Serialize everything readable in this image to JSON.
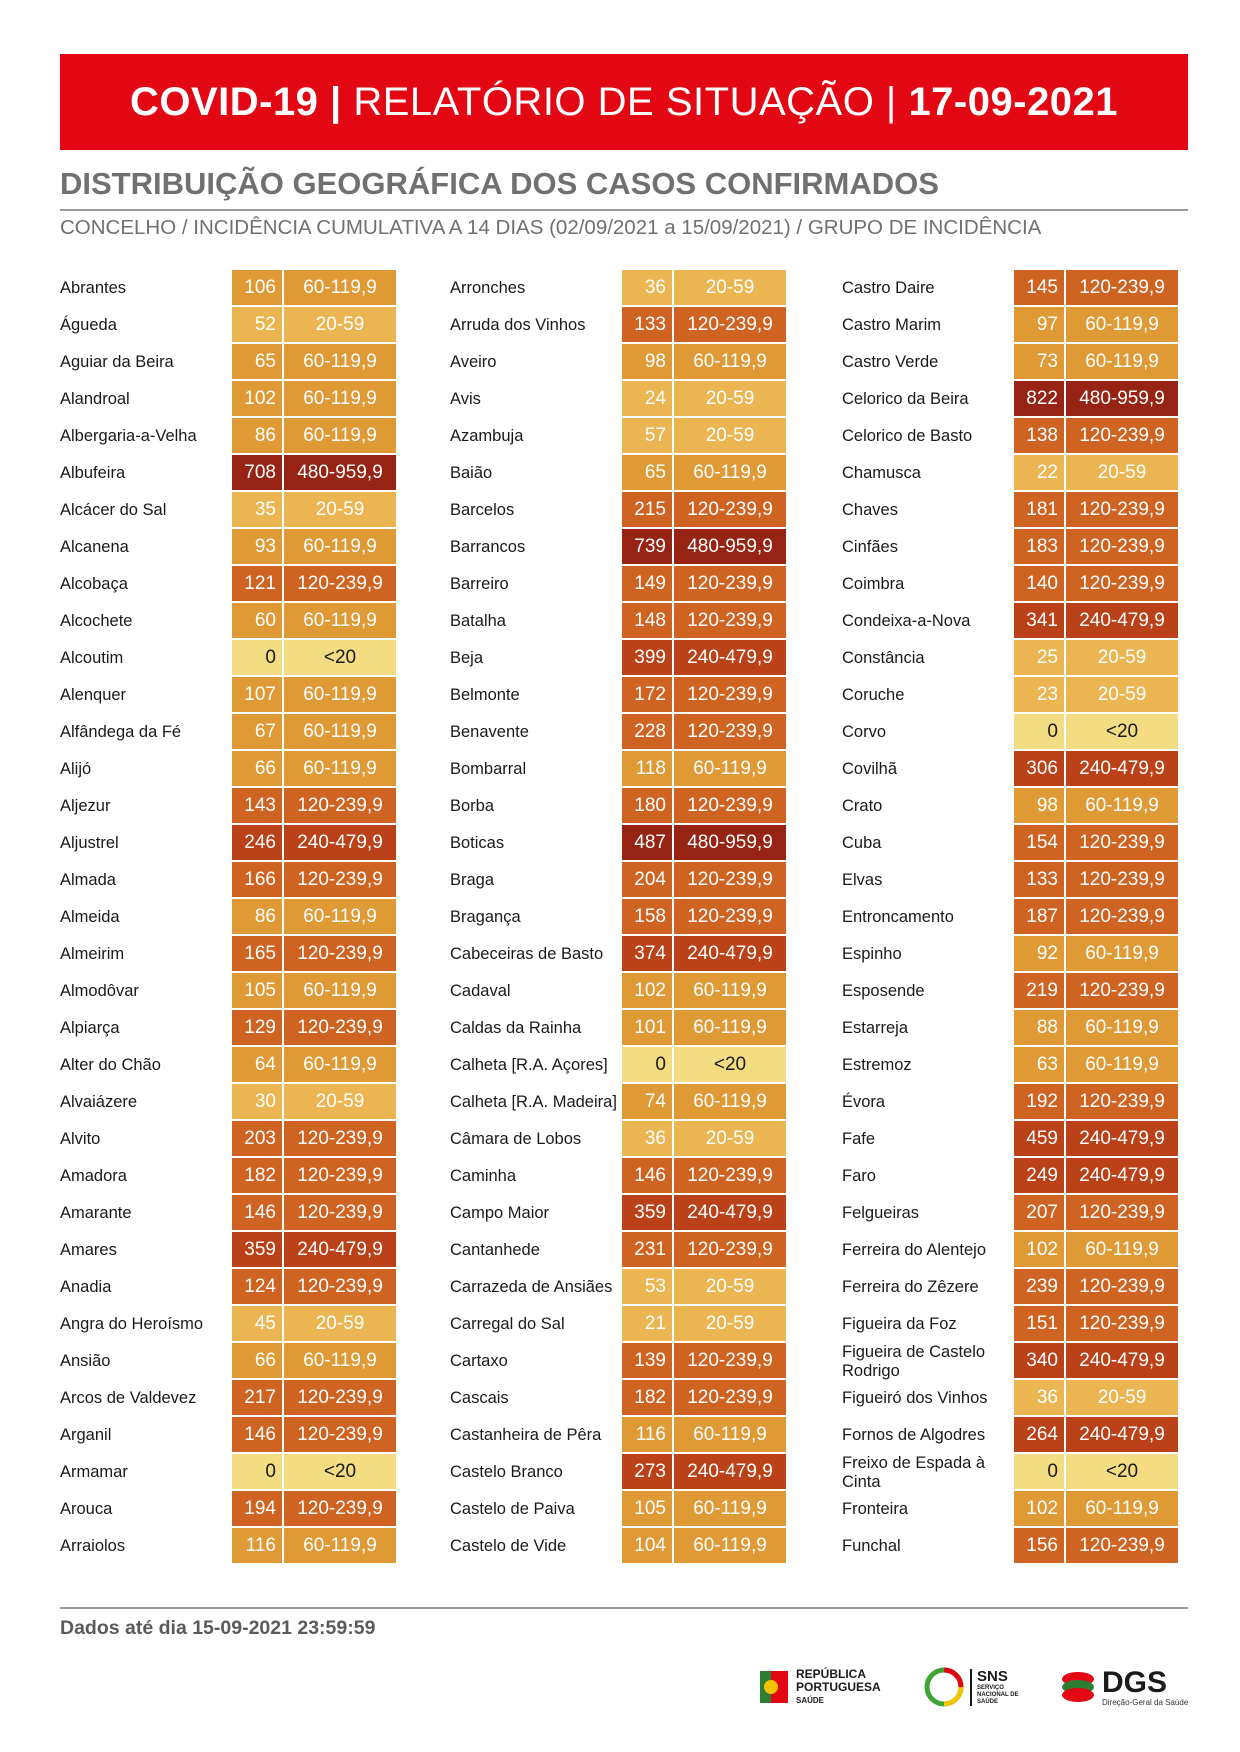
{
  "header": {
    "covid": "COVID-19 |",
    "report": "RELATÓRIO DE SITUAÇÃO |",
    "date": "17-09-2021"
  },
  "section": {
    "title": "DISTRIBUIÇÃO GEOGRÁFICA DOS CASOS CONFIRMADOS",
    "subtitle": "CONCELHO / INCIDÊNCIA CUMULATIVA A 14 DIAS (02/09/2021 a 15/09/2021) / GRUPO DE INCIDÊNCIA"
  },
  "group_colors": {
    "<20": "#f3dc82",
    "20-59": "#ebb652",
    "60-119,9": "#df9a36",
    "120-239,9": "#cf6422",
    "240-479,9": "#bb4119",
    "480-959,9": "#962313"
  },
  "columns": [
    [
      {
        "name": "Abrantes",
        "value": "106",
        "group": "60-119,9"
      },
      {
        "name": "Águeda",
        "value": "52",
        "group": "20-59"
      },
      {
        "name": "Aguiar da Beira",
        "value": "65",
        "group": "60-119,9"
      },
      {
        "name": "Alandroal",
        "value": "102",
        "group": "60-119,9"
      },
      {
        "name": "Albergaria-a-Velha",
        "value": "86",
        "group": "60-119,9"
      },
      {
        "name": "Albufeira",
        "value": "708",
        "group": "480-959,9"
      },
      {
        "name": "Alcácer do Sal",
        "value": "35",
        "group": "20-59"
      },
      {
        "name": "Alcanena",
        "value": "93",
        "group": "60-119,9"
      },
      {
        "name": "Alcobaça",
        "value": "121",
        "group": "120-239,9"
      },
      {
        "name": "Alcochete",
        "value": "60",
        "group": "60-119,9"
      },
      {
        "name": "Alcoutim",
        "value": "0",
        "group": "<20"
      },
      {
        "name": "Alenquer",
        "value": "107",
        "group": "60-119,9"
      },
      {
        "name": "Alfândega da Fé",
        "value": "67",
        "group": "60-119,9"
      },
      {
        "name": "Alijó",
        "value": "66",
        "group": "60-119,9"
      },
      {
        "name": "Aljezur",
        "value": "143",
        "group": "120-239,9"
      },
      {
        "name": "Aljustrel",
        "value": "246",
        "group": "240-479,9"
      },
      {
        "name": "Almada",
        "value": "166",
        "group": "120-239,9"
      },
      {
        "name": "Almeida",
        "value": "86",
        "group": "60-119,9"
      },
      {
        "name": "Almeirim",
        "value": "165",
        "group": "120-239,9"
      },
      {
        "name": "Almodôvar",
        "value": "105",
        "group": "60-119,9"
      },
      {
        "name": "Alpiarça",
        "value": "129",
        "group": "120-239,9"
      },
      {
        "name": "Alter do Chão",
        "value": "64",
        "group": "60-119,9"
      },
      {
        "name": "Alvaiázere",
        "value": "30",
        "group": "20-59"
      },
      {
        "name": "Alvito",
        "value": "203",
        "group": "120-239,9"
      },
      {
        "name": "Amadora",
        "value": "182",
        "group": "120-239,9"
      },
      {
        "name": "Amarante",
        "value": "146",
        "group": "120-239,9"
      },
      {
        "name": "Amares",
        "value": "359",
        "group": "240-479,9"
      },
      {
        "name": "Anadia",
        "value": "124",
        "group": "120-239,9"
      },
      {
        "name": "Angra do Heroísmo",
        "value": "45",
        "group": "20-59"
      },
      {
        "name": "Ansião",
        "value": "66",
        "group": "60-119,9"
      },
      {
        "name": "Arcos de Valdevez",
        "value": "217",
        "group": "120-239,9"
      },
      {
        "name": "Arganil",
        "value": "146",
        "group": "120-239,9"
      },
      {
        "name": "Armamar",
        "value": "0",
        "group": "<20"
      },
      {
        "name": "Arouca",
        "value": "194",
        "group": "120-239,9"
      },
      {
        "name": "Arraiolos",
        "value": "116",
        "group": "60-119,9"
      }
    ],
    [
      {
        "name": "Arronches",
        "value": "36",
        "group": "20-59"
      },
      {
        "name": "Arruda dos Vinhos",
        "value": "133",
        "group": "120-239,9"
      },
      {
        "name": "Aveiro",
        "value": "98",
        "group": "60-119,9"
      },
      {
        "name": "Avis",
        "value": "24",
        "group": "20-59"
      },
      {
        "name": "Azambuja",
        "value": "57",
        "group": "20-59"
      },
      {
        "name": "Baião",
        "value": "65",
        "group": "60-119,9"
      },
      {
        "name": "Barcelos",
        "value": "215",
        "group": "120-239,9"
      },
      {
        "name": "Barrancos",
        "value": "739",
        "group": "480-959,9"
      },
      {
        "name": "Barreiro",
        "value": "149",
        "group": "120-239,9"
      },
      {
        "name": "Batalha",
        "value": "148",
        "group": "120-239,9"
      },
      {
        "name": "Beja",
        "value": "399",
        "group": "240-479,9"
      },
      {
        "name": "Belmonte",
        "value": "172",
        "group": "120-239,9"
      },
      {
        "name": "Benavente",
        "value": "228",
        "group": "120-239,9"
      },
      {
        "name": "Bombarral",
        "value": "118",
        "group": "60-119,9"
      },
      {
        "name": "Borba",
        "value": "180",
        "group": "120-239,9"
      },
      {
        "name": "Boticas",
        "value": "487",
        "group": "480-959,9"
      },
      {
        "name": "Braga",
        "value": "204",
        "group": "120-239,9"
      },
      {
        "name": "Bragança",
        "value": "158",
        "group": "120-239,9"
      },
      {
        "name": "Cabeceiras de Basto",
        "value": "374",
        "group": "240-479,9"
      },
      {
        "name": "Cadaval",
        "value": "102",
        "group": "60-119,9"
      },
      {
        "name": "Caldas da Rainha",
        "value": "101",
        "group": "60-119,9"
      },
      {
        "name": "Calheta [R.A. Açores]",
        "value": "0",
        "group": "<20"
      },
      {
        "name": "Calheta [R.A. Madeira]",
        "value": "74",
        "group": "60-119,9"
      },
      {
        "name": "Câmara de Lobos",
        "value": "36",
        "group": "20-59"
      },
      {
        "name": "Caminha",
        "value": "146",
        "group": "120-239,9"
      },
      {
        "name": "Campo Maior",
        "value": "359",
        "group": "240-479,9"
      },
      {
        "name": "Cantanhede",
        "value": "231",
        "group": "120-239,9"
      },
      {
        "name": "Carrazeda de Ansiães",
        "value": "53",
        "group": "20-59"
      },
      {
        "name": "Carregal do Sal",
        "value": "21",
        "group": "20-59"
      },
      {
        "name": "Cartaxo",
        "value": "139",
        "group": "120-239,9"
      },
      {
        "name": "Cascais",
        "value": "182",
        "group": "120-239,9"
      },
      {
        "name": "Castanheira de Pêra",
        "value": "116",
        "group": "60-119,9"
      },
      {
        "name": "Castelo Branco",
        "value": "273",
        "group": "240-479,9"
      },
      {
        "name": "Castelo de Paiva",
        "value": "105",
        "group": "60-119,9"
      },
      {
        "name": "Castelo de Vide",
        "value": "104",
        "group": "60-119,9"
      }
    ],
    [
      {
        "name": "Castro Daire",
        "value": "145",
        "group": "120-239,9"
      },
      {
        "name": "Castro Marim",
        "value": "97",
        "group": "60-119,9"
      },
      {
        "name": "Castro Verde",
        "value": "73",
        "group": "60-119,9"
      },
      {
        "name": "Celorico da Beira",
        "value": "822",
        "group": "480-959,9"
      },
      {
        "name": "Celorico de Basto",
        "value": "138",
        "group": "120-239,9"
      },
      {
        "name": "Chamusca",
        "value": "22",
        "group": "20-59"
      },
      {
        "name": "Chaves",
        "value": "181",
        "group": "120-239,9"
      },
      {
        "name": "Cinfães",
        "value": "183",
        "group": "120-239,9"
      },
      {
        "name": "Coimbra",
        "value": "140",
        "group": "120-239,9"
      },
      {
        "name": "Condeixa-a-Nova",
        "value": "341",
        "group": "240-479,9"
      },
      {
        "name": "Constância",
        "value": "25",
        "group": "20-59"
      },
      {
        "name": "Coruche",
        "value": "23",
        "group": "20-59"
      },
      {
        "name": "Corvo",
        "value": "0",
        "group": "<20"
      },
      {
        "name": "Covilhã",
        "value": "306",
        "group": "240-479,9"
      },
      {
        "name": "Crato",
        "value": "98",
        "group": "60-119,9"
      },
      {
        "name": "Cuba",
        "value": "154",
        "group": "120-239,9"
      },
      {
        "name": "Elvas",
        "value": "133",
        "group": "120-239,9"
      },
      {
        "name": "Entroncamento",
        "value": "187",
        "group": "120-239,9"
      },
      {
        "name": "Espinho",
        "value": "92",
        "group": "60-119,9"
      },
      {
        "name": "Esposende",
        "value": "219",
        "group": "120-239,9"
      },
      {
        "name": "Estarreja",
        "value": "88",
        "group": "60-119,9"
      },
      {
        "name": "Estremoz",
        "value": "63",
        "group": "60-119,9"
      },
      {
        "name": "Évora",
        "value": "192",
        "group": "120-239,9"
      },
      {
        "name": "Fafe",
        "value": "459",
        "group": "240-479,9"
      },
      {
        "name": "Faro",
        "value": "249",
        "group": "240-479,9"
      },
      {
        "name": "Felgueiras",
        "value": "207",
        "group": "120-239,9"
      },
      {
        "name": "Ferreira do Alentejo",
        "value": "102",
        "group": "60-119,9"
      },
      {
        "name": "Ferreira do Zêzere",
        "value": "239",
        "group": "120-239,9"
      },
      {
        "name": "Figueira da Foz",
        "value": "151",
        "group": "120-239,9"
      },
      {
        "name": "Figueira de Castelo Rodrigo",
        "value": "340",
        "group": "240-479,9"
      },
      {
        "name": "Figueiró dos Vinhos",
        "value": "36",
        "group": "20-59"
      },
      {
        "name": "Fornos de Algodres",
        "value": "264",
        "group": "240-479,9"
      },
      {
        "name": "Freixo de Espada à Cinta",
        "value": "0",
        "group": "<20"
      },
      {
        "name": "Fronteira",
        "value": "102",
        "group": "60-119,9"
      },
      {
        "name": "Funchal",
        "value": "156",
        "group": "120-239,9"
      }
    ]
  ],
  "footer": {
    "data_note": "Dados até dia 15-09-2021 23:59:59"
  },
  "logos": {
    "rp_line1": "REPÚBLICA",
    "rp_line2": "PORTUGUESA",
    "rp_line3": "SAÚDE",
    "sns": "SNS",
    "sns_sub": "SERVIÇO NACIONAL DE SAÚDE",
    "dgs": "DGS",
    "dgs_sub": "Direção-Geral da Saúde"
  }
}
